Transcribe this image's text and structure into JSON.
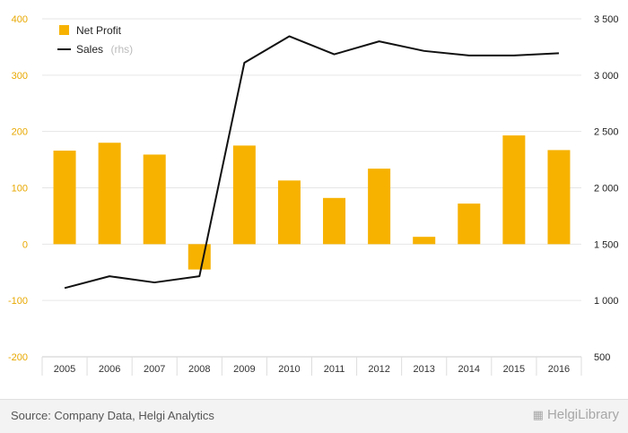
{
  "chart_data": {
    "type": "bar",
    "categories": [
      "2005",
      "2006",
      "2007",
      "2008",
      "2009",
      "2010",
      "2011",
      "2012",
      "2013",
      "2014",
      "2015",
      "2016"
    ],
    "series": [
      {
        "name": "Net Profit",
        "type": "bar",
        "axis": "left",
        "color": "#f7b200",
        "values": [
          166,
          180,
          159,
          -45,
          175,
          113,
          82,
          134,
          13,
          72,
          193,
          167
        ]
      },
      {
        "name": "Sales",
        "type": "line",
        "axis": "right",
        "color": "#111111",
        "values": [
          1110,
          1215,
          1160,
          1215,
          3110,
          3345,
          3185,
          3300,
          3215,
          3175,
          3175,
          3195
        ]
      }
    ],
    "legend": {
      "net_profit": "Net Profit",
      "sales": "Sales",
      "sales_suffix": "(rhs)"
    },
    "ylim_left": [
      -200,
      400
    ],
    "ylim_right": [
      500,
      3500
    ],
    "left_ticks": [
      "400",
      "300",
      "200",
      "100",
      "0",
      "-100",
      "-200"
    ],
    "right_ticks": [
      "3 500",
      "3 000",
      "2 500",
      "2 000",
      "1 500",
      "1 000",
      "500"
    ],
    "grid": true,
    "legend_position": "top-left"
  },
  "footer": {
    "source": "Source: Company Data, Helgi Analytics",
    "brand": "HelgiLibrary"
  }
}
